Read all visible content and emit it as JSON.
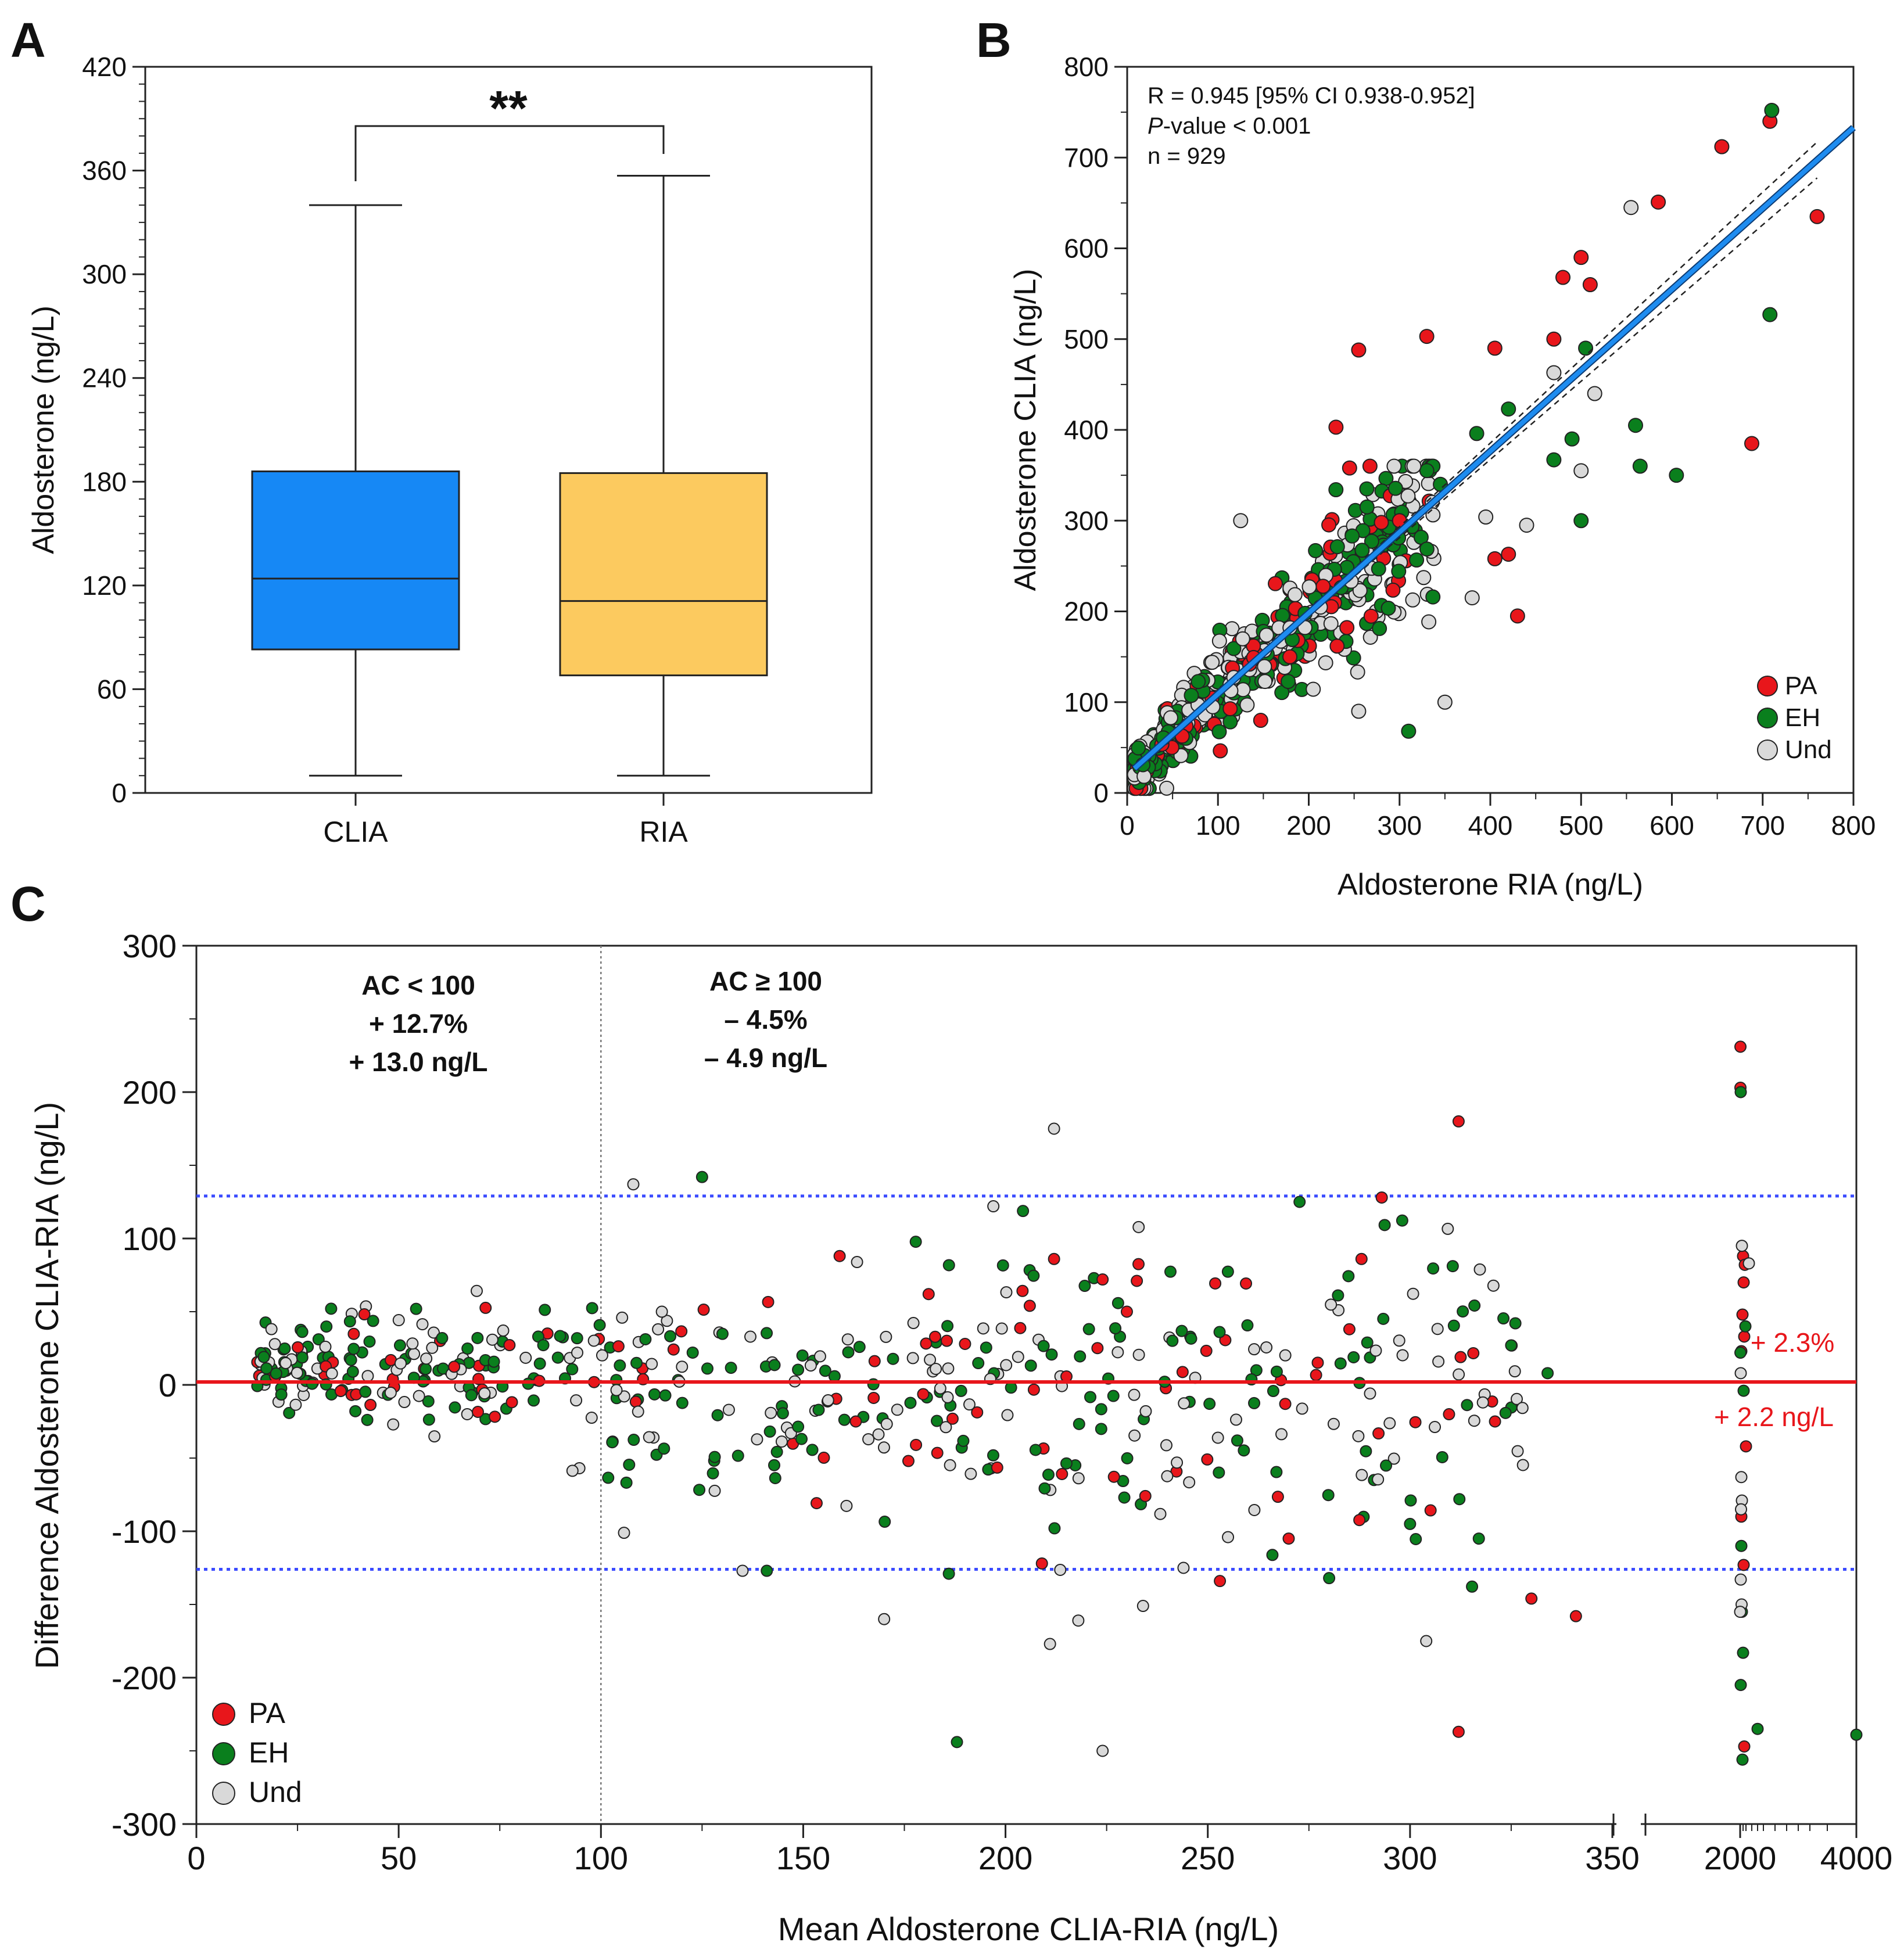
{
  "panels": {
    "a": "A",
    "b": "B",
    "c": "C"
  },
  "colors": {
    "pa": "#e8161b",
    "eh": "#0a7f1d",
    "und": "#d9d9d9",
    "clia_box": "#1688f5",
    "ria_box": "#fcca5f",
    "fit_line": "#1e8cf0",
    "loa": "#3b4bff",
    "mean_line": "#e8161b"
  },
  "chart_data": [
    {
      "id": "A",
      "type": "box",
      "ylabel": "Aldosterone (ng/L)",
      "ylim": [
        0,
        420
      ],
      "yticks": [
        "0",
        "60",
        "120",
        "180",
        "240",
        "300",
        "360",
        "420"
      ],
      "categories": [
        "CLIA",
        "RIA"
      ],
      "boxes": [
        {
          "name": "CLIA",
          "min": 10,
          "q1": 83,
          "median": 124,
          "q3": 186,
          "max": 340
        },
        {
          "name": "RIA",
          "min": 10,
          "q1": 68,
          "median": 111,
          "q3": 185,
          "max": 357
        }
      ],
      "significance": "**"
    },
    {
      "id": "B",
      "type": "scatter",
      "xlabel": "Aldosterone RIA (ng/L)",
      "ylabel": "Aldosterone CLIA (ng/L)",
      "xlim": [
        0,
        800
      ],
      "ylim": [
        0,
        800
      ],
      "xticks": [
        "0",
        "100",
        "200",
        "300",
        "400",
        "500",
        "600",
        "700",
        "800"
      ],
      "yticks": [
        "0",
        "100",
        "200",
        "300",
        "400",
        "500",
        "600",
        "700",
        "800"
      ],
      "annotation": {
        "r": "R = 0.945 [95% CI 0.938-0.952]",
        "p_italic": "P",
        "p_rest": "-value < 0.001",
        "n": "n = 929"
      },
      "legend": [
        "PA",
        "EH",
        "Und"
      ],
      "fit": {
        "x": [
          8,
          800
        ],
        "y": [
          27,
          733
        ],
        "ci": 9
      },
      "seed": 11,
      "n_bulk": 620,
      "series": [
        {
          "name": "PA",
          "points": [
            [
              330,
              503
            ],
            [
              255,
              488
            ],
            [
              405,
              490
            ],
            [
              470,
              500
            ],
            [
              480,
              568
            ],
            [
              500,
              590
            ],
            [
              510,
              560
            ],
            [
              585,
              651
            ],
            [
              655,
              712
            ],
            [
              708,
              740
            ],
            [
              760,
              635
            ],
            [
              688,
              385
            ],
            [
              430,
              195
            ],
            [
              420,
              263
            ],
            [
              405,
              258
            ],
            [
              230,
              403
            ],
            [
              245,
              358
            ],
            [
              300,
              300
            ],
            [
              280,
              298
            ]
          ]
        },
        {
          "name": "EH",
          "points": [
            [
              710,
              752
            ],
            [
              708,
              527
            ],
            [
              560,
              405
            ],
            [
              605,
              350
            ],
            [
              565,
              360
            ],
            [
              500,
              300
            ],
            [
              505,
              490
            ],
            [
              420,
              423
            ],
            [
              385,
              396
            ],
            [
              345,
              340
            ],
            [
              310,
              68
            ],
            [
              490,
              390
            ],
            [
              470,
              367
            ]
          ]
        },
        {
          "name": "Und",
          "points": [
            [
              555,
              645
            ],
            [
              515,
              440
            ],
            [
              500,
              355
            ],
            [
              470,
              463
            ],
            [
              440,
              295
            ],
            [
              395,
              304
            ],
            [
              380,
              215
            ],
            [
              350,
              100
            ],
            [
              255,
              90
            ],
            [
              125,
              300
            ]
          ]
        }
      ]
    },
    {
      "id": "C",
      "type": "scatter",
      "xlabel": "Mean Aldosterone CLIA-RIA (ng/L)",
      "ylabel": "Difference Aldosterone CLIA-RIA (ng/L)",
      "xlim": [
        0,
        4000
      ],
      "ylim": [
        -300,
        300
      ],
      "xticks": [
        "0",
        "50",
        "100",
        "150",
        "200",
        "250",
        "300",
        "350",
        "2000",
        "4000"
      ],
      "yticks": [
        "-300",
        "-200",
        "-100",
        "0",
        "100",
        "200",
        "300"
      ],
      "broken_axis": {
        "break_after": 350,
        "resume": 360
      },
      "mean_line": 2,
      "loa_upper": 129,
      "loa_lower": -126,
      "divider_x": 100,
      "left_annotation": [
        "AC < 100",
        "+ 12.7%",
        "+ 13.0 ng/L"
      ],
      "right_annotation": [
        "AC ≥ 100",
        "– 4.5%",
        "– 4.9 ng/L"
      ],
      "bias_labels": [
        "+ 2.3%",
        "+ 2.2 ng/L"
      ],
      "legend": [
        "PA",
        "EH",
        "Und"
      ],
      "seed": 29,
      "n_bulk": 520,
      "series": [
        {
          "name": "PA",
          "points": [
            [
              312,
              180
            ],
            [
              293,
              128
            ],
            [
              312,
              -237
            ],
            [
              321,
              -25
            ],
            [
              330,
              -146
            ],
            [
              341,
              -158
            ],
            [
              288,
              86
            ],
            [
              285,
              38
            ],
            [
              270,
              -105
            ],
            [
              253,
              -134
            ],
            [
              209,
              -122
            ],
            [
              212,
              86
            ],
            [
              224,
              72
            ],
            [
              230,
              50
            ],
            [
              181,
              62
            ],
            [
              176,
              -52
            ],
            [
              206,
              54
            ],
            [
              159,
              88
            ],
            [
              163,
              -25
            ],
            [
              190,
              28
            ]
          ]
        },
        {
          "name": "EH",
          "points": [
            [
              141,
              -127
            ],
            [
              186,
              -129
            ],
            [
              188,
              -244
            ],
            [
              125,
              142
            ],
            [
              300,
              -95
            ],
            [
              317,
              -105
            ],
            [
              4000,
              -239
            ],
            [
              280,
              -132
            ],
            [
              325,
              27
            ],
            [
              334,
              8
            ]
          ]
        },
        {
          "name": "Und",
          "points": [
            [
              108,
              137
            ],
            [
              212,
              175
            ],
            [
              197,
              122
            ],
            [
              135,
              -127
            ],
            [
              170,
              -160
            ],
            [
              224,
              -250
            ],
            [
              304,
              -175
            ],
            [
              234,
              -151
            ],
            [
              244,
              -125
            ],
            [
              211,
              -177
            ],
            [
              218,
              -161
            ],
            [
              255,
              -104
            ],
            [
              318,
              -12
            ]
          ]
        }
      ],
      "cluster_2000": {
        "PA": [
          [
            2005,
            231
          ],
          [
            2005,
            203
          ],
          [
            2050,
            88
          ],
          [
            2080,
            82
          ],
          [
            2060,
            70
          ],
          [
            2040,
            48
          ],
          [
            2020,
            23
          ],
          [
            2070,
            33
          ],
          [
            2100,
            -42
          ],
          [
            2020,
            -90
          ],
          [
            2060,
            -123
          ],
          [
            2070,
            -247
          ]
        ],
        "EH": [
          [
            2010,
            200
          ],
          [
            2005,
            22
          ],
          [
            2030,
            -155
          ],
          [
            2050,
            -183
          ],
          [
            2010,
            -205
          ],
          [
            2040,
            -256
          ],
          [
            2060,
            -4
          ],
          [
            2020,
            -110
          ],
          [
            2300,
            -235
          ],
          [
            2090,
            40
          ]
        ],
        "Und": [
          [
            2030,
            95
          ],
          [
            2010,
            8
          ],
          [
            2020,
            -63
          ],
          [
            2030,
            -79
          ],
          [
            2015,
            -85
          ],
          [
            2025,
            -150
          ],
          [
            2000,
            -155
          ],
          [
            2150,
            83
          ],
          [
            2010,
            -133
          ]
        ]
      }
    }
  ]
}
